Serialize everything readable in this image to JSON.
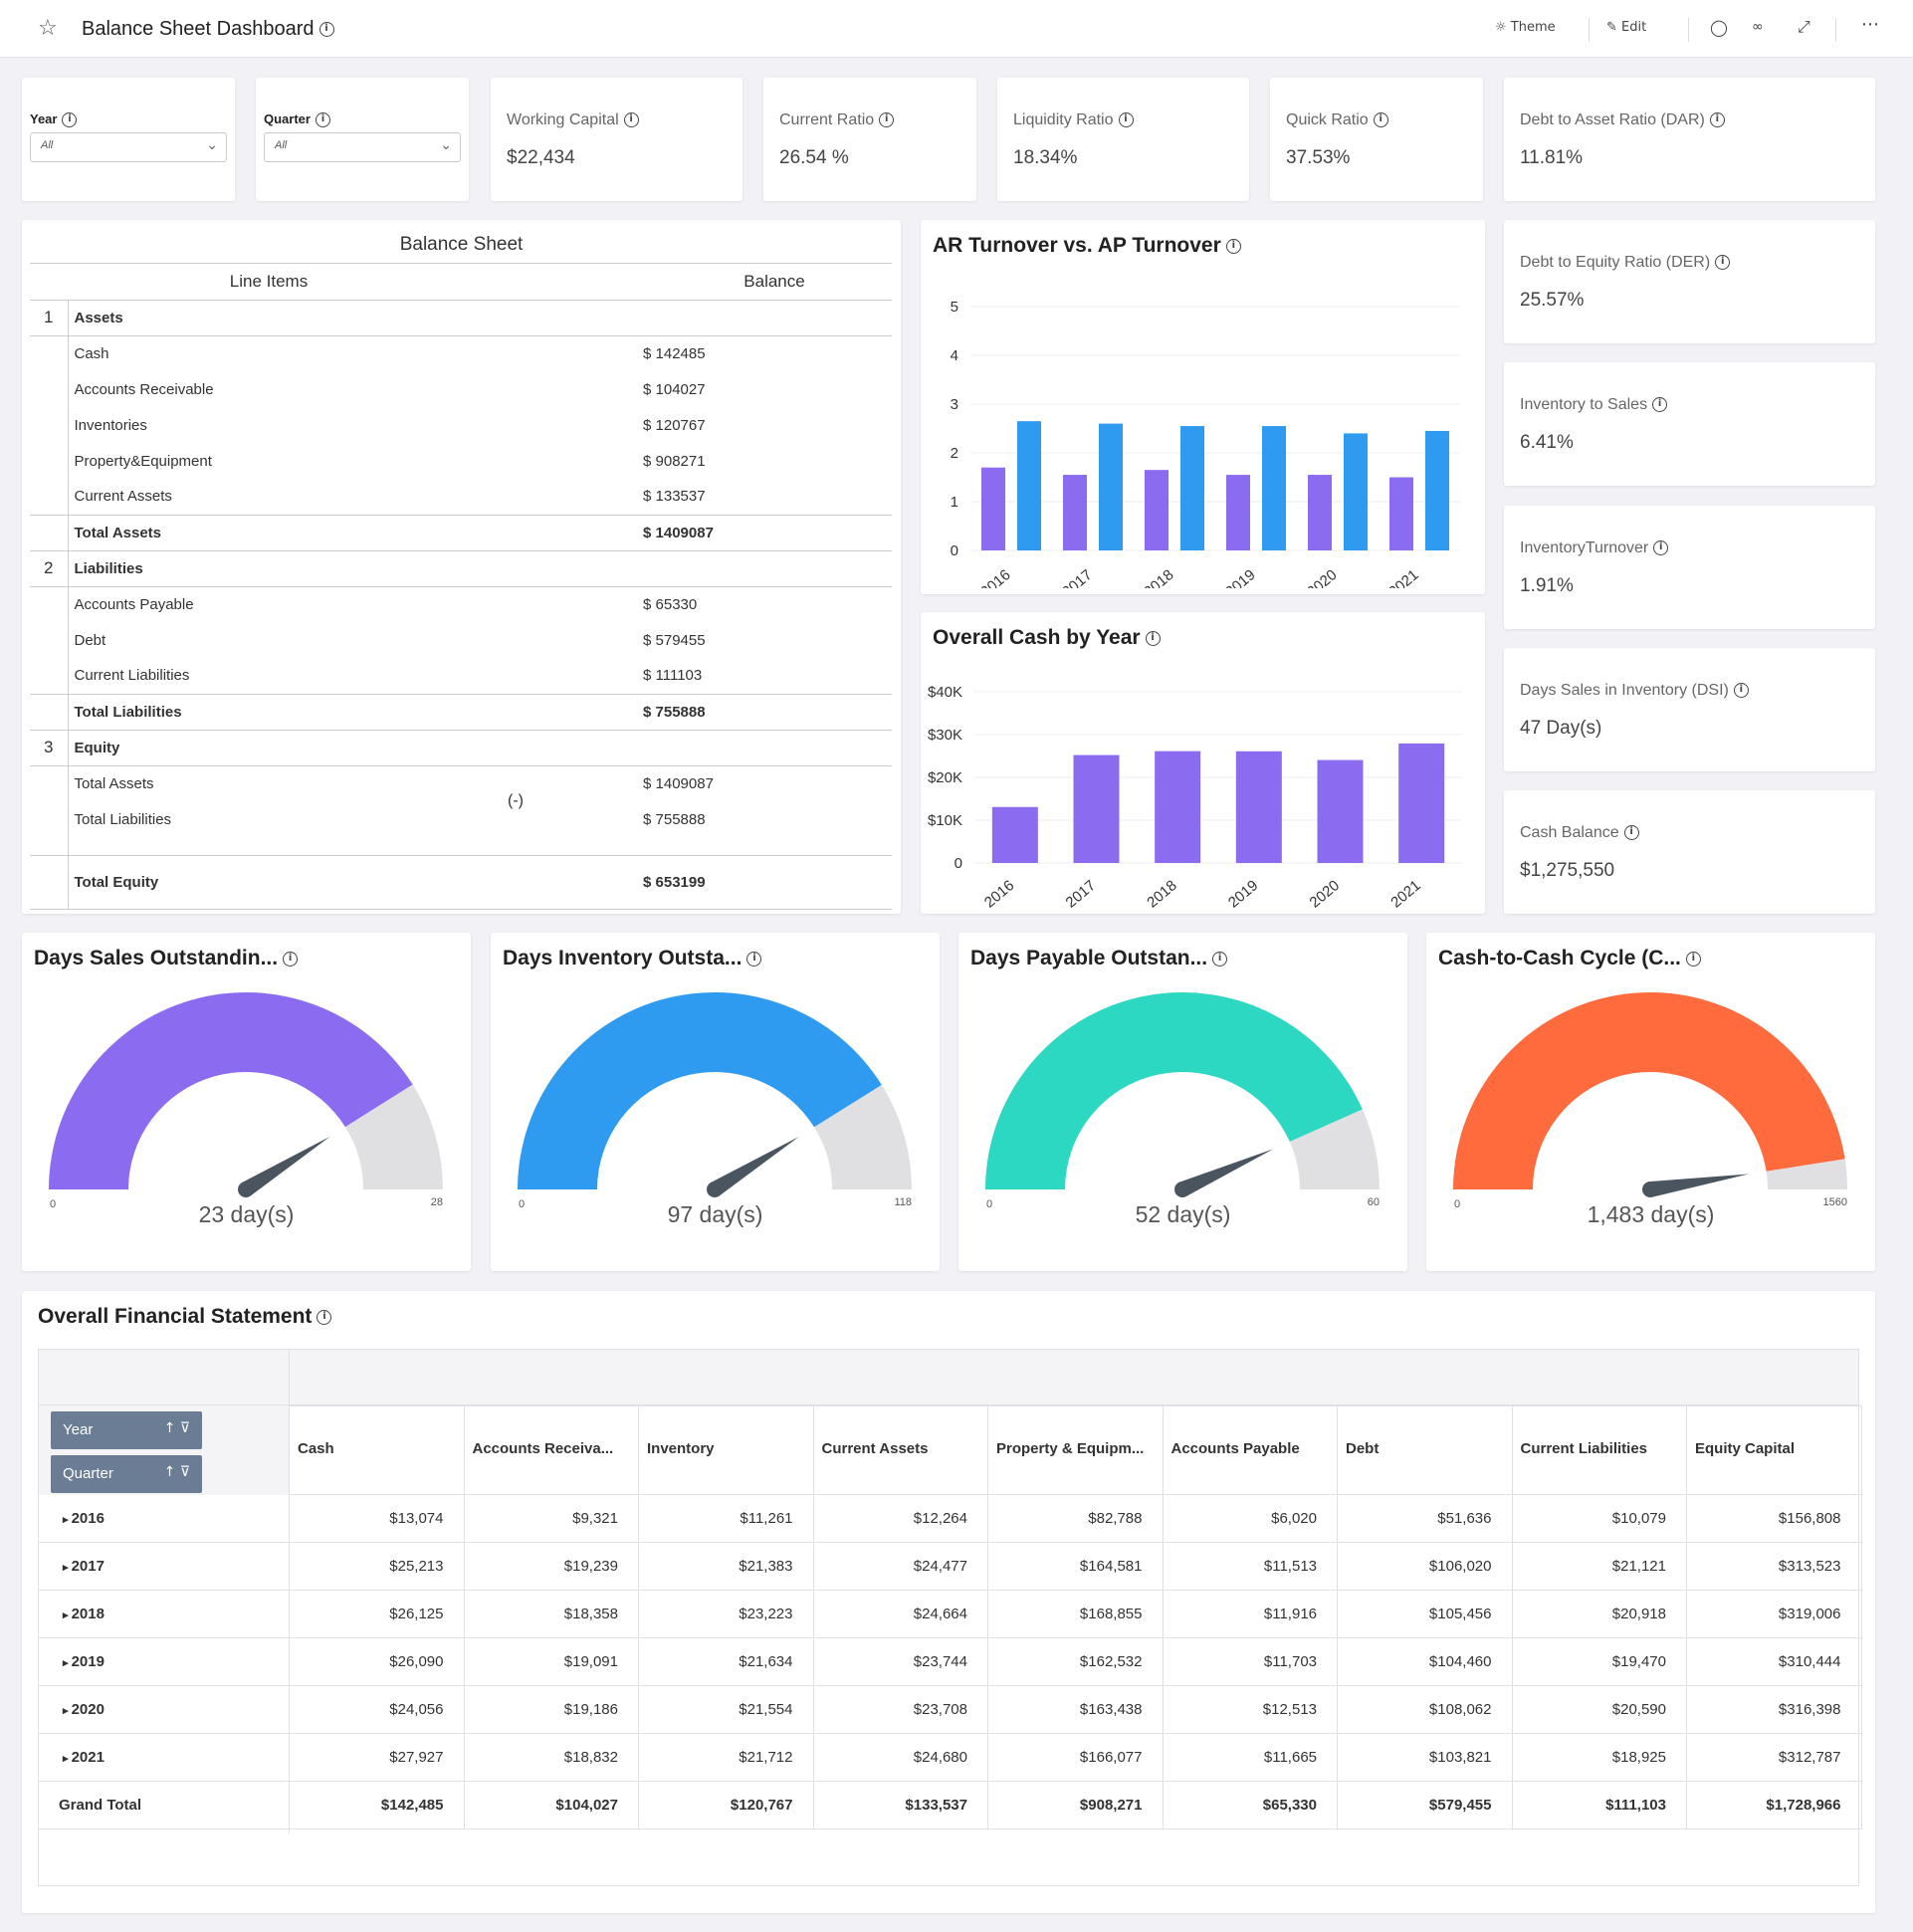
{
  "header": {
    "title": "Balance Sheet Dashboard",
    "theme_label": "Theme",
    "edit_label": "Edit"
  },
  "filters": {
    "year": {
      "label": "Year",
      "value": "All"
    },
    "quarter": {
      "label": "Quarter",
      "value": "All"
    }
  },
  "kpis": {
    "working_capital": {
      "label": "Working Capital",
      "value": "$22,434"
    },
    "current_ratio": {
      "label": "Current Ratio",
      "value": "26.54 %"
    },
    "liquidity_ratio": {
      "label": "Liquidity Ratio",
      "value": "18.34%"
    },
    "quick_ratio": {
      "label": "Quick Ratio",
      "value": "37.53%"
    },
    "dar": {
      "label": "Debt to Asset Ratio (DAR)",
      "value": "11.81%"
    },
    "der": {
      "label": "Debt to Equity Ratio (DER)",
      "value": "25.57%"
    },
    "inv_sales": {
      "label": "Inventory to Sales",
      "value": "6.41%"
    },
    "inv_turnover": {
      "label": "InventoryTurnover",
      "value": "1.91%"
    },
    "dsi": {
      "label": "Days Sales in Inventory (DSI)",
      "value": "47 Day(s)"
    },
    "cash_balance": {
      "label": "Cash Balance",
      "value": "$1,275,550"
    }
  },
  "balance_sheet": {
    "title": "Balance Sheet",
    "col_items": "Line Items",
    "col_balance": "Balance",
    "sections": [
      {
        "num": "1",
        "label": "Assets"
      },
      {
        "num": "2",
        "label": "Liabilities"
      },
      {
        "num": "3",
        "label": "Equity"
      }
    ],
    "assets": [
      {
        "item": "Cash",
        "value": "$ 142485"
      },
      {
        "item": "Accounts Receivable",
        "value": "$ 104027"
      },
      {
        "item": "Inventories",
        "value": "$ 120767"
      },
      {
        "item": "Property&Equipment",
        "value": "$ 908271"
      },
      {
        "item": "Current Assets",
        "value": "$ 133537"
      }
    ],
    "total_assets": {
      "item": "Total Assets",
      "value": "$ 1409087"
    },
    "liabilities": [
      {
        "item": "Accounts Payable",
        "value": "$ 65330"
      },
      {
        "item": "Debt",
        "value": "$ 579455"
      },
      {
        "item": "Current Liabilities",
        "value": "$ 111103"
      }
    ],
    "total_liabilities": {
      "item": "Total Liabilities",
      "value": "$ 755888"
    },
    "equity": [
      {
        "item": "Total Assets",
        "value": "$ 1409087"
      },
      {
        "item": "Total Liabilities",
        "value": "$ 755888"
      }
    ],
    "minus_sign": "(-)",
    "total_equity": {
      "item": "Total Equity",
      "value": "$ 653199"
    }
  },
  "chart_data": [
    {
      "type": "bar",
      "title": "AR Turnover vs. AP Turnover",
      "categories": [
        "2016",
        "2017",
        "2018",
        "2019",
        "2020",
        "2021"
      ],
      "series": [
        {
          "color": "#8b6cf0",
          "values": [
            1.7,
            1.55,
            1.65,
            1.55,
            1.55,
            1.5
          ]
        },
        {
          "color": "#2f9bf0",
          "values": [
            2.65,
            2.6,
            2.55,
            2.55,
            2.4,
            2.45
          ]
        }
      ],
      "ylim": [
        0,
        5
      ],
      "yticks": [
        "0",
        "1",
        "2",
        "3",
        "4",
        "5"
      ]
    },
    {
      "type": "bar",
      "title": "Overall Cash by Year",
      "categories": [
        "2016",
        "2017",
        "2018",
        "2019",
        "2020",
        "2021"
      ],
      "series": [
        {
          "color": "#8b6cf0",
          "values": [
            13074,
            25213,
            26125,
            26090,
            24056,
            27927
          ]
        }
      ],
      "ylim": [
        0,
        40000
      ],
      "yticks": [
        "0",
        "$10K",
        "$20K",
        "$30K",
        "$40K"
      ]
    }
  ],
  "gauges": [
    {
      "title": "Days Sales Outstandin...",
      "value": 23,
      "max": 28,
      "min_label": "0",
      "max_label": "28",
      "value_label": "23 day(s)",
      "color": "#8b6cf0"
    },
    {
      "title": "Days Inventory Outsta...",
      "value": 97,
      "max": 118,
      "min_label": "0",
      "max_label": "118",
      "value_label": "97 day(s)",
      "color": "#2f9bf0"
    },
    {
      "title": "Days Payable Outstan...",
      "value": 52,
      "max": 60,
      "min_label": "0",
      "max_label": "60",
      "value_label": "52 day(s)",
      "color": "#2dd8c2"
    },
    {
      "title": "Cash-to-Cash Cycle (C...",
      "value": 1483,
      "max": 1560,
      "min_label": "0",
      "max_label": "1560",
      "value_label": "1,483 day(s)",
      "color": "#ff6b3d"
    }
  ],
  "financial": {
    "title": "Overall Financial Statement",
    "pill_year": "Year",
    "pill_quarter": "Quarter",
    "columns": [
      "Cash",
      "Accounts Receiva...",
      "Inventory",
      "Current Assets",
      "Property & Equipm...",
      "Accounts Payable",
      "Debt",
      "Current Liabilities",
      "Equity Capital"
    ],
    "rows": [
      {
        "label": "2016",
        "cells": [
          "$13,074",
          "$9,321",
          "$11,261",
          "$12,264",
          "$82,788",
          "$6,020",
          "$51,636",
          "$10,079",
          "$156,808"
        ]
      },
      {
        "label": "2017",
        "cells": [
          "$25,213",
          "$19,239",
          "$21,383",
          "$24,477",
          "$164,581",
          "$11,513",
          "$106,020",
          "$21,121",
          "$313,523"
        ]
      },
      {
        "label": "2018",
        "cells": [
          "$26,125",
          "$18,358",
          "$23,223",
          "$24,664",
          "$168,855",
          "$11,916",
          "$105,456",
          "$20,918",
          "$319,006"
        ]
      },
      {
        "label": "2019",
        "cells": [
          "$26,090",
          "$19,091",
          "$21,634",
          "$23,744",
          "$162,532",
          "$11,703",
          "$104,460",
          "$19,470",
          "$310,444"
        ]
      },
      {
        "label": "2020",
        "cells": [
          "$24,056",
          "$19,186",
          "$21,554",
          "$23,708",
          "$163,438",
          "$12,513",
          "$108,062",
          "$20,590",
          "$316,398"
        ]
      },
      {
        "label": "2021",
        "cells": [
          "$27,927",
          "$18,832",
          "$21,712",
          "$24,680",
          "$166,077",
          "$11,665",
          "$103,821",
          "$18,925",
          "$312,787"
        ]
      }
    ],
    "total": {
      "label": "Grand Total",
      "cells": [
        "$142,485",
        "$104,027",
        "$120,767",
        "$133,537",
        "$908,271",
        "$65,330",
        "$579,455",
        "$111,103",
        "$1,728,966"
      ]
    }
  }
}
